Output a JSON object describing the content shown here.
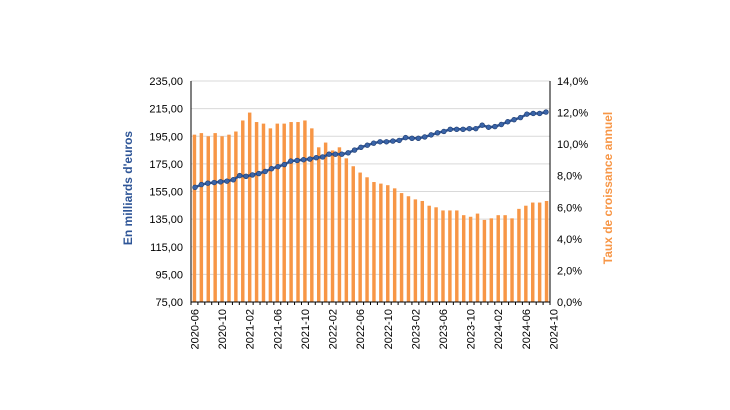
{
  "chart_data": {
    "type": "bar+line",
    "title": "",
    "grid": true,
    "left_axis": {
      "label": "En milliards d'euros",
      "color": "#2E5597",
      "ylim": [
        75,
        235
      ],
      "ticks": [
        "235,00",
        "215,00",
        "195,00",
        "175,00",
        "155,00",
        "135,00",
        "115,00",
        "95,00",
        "75,00"
      ]
    },
    "right_axis": {
      "label": "Taux de croissance annuel",
      "color": "#F79646",
      "ylim": [
        0,
        14
      ],
      "ticks": [
        "14,0%",
        "12,0%",
        "10,0%",
        "8,0%",
        "6,0%",
        "4,0%",
        "2,0%",
        "0,0%"
      ]
    },
    "x_tick_labels": [
      "2020-06",
      "2020-10",
      "2021-02",
      "2021-06",
      "2021-10",
      "2022-02",
      "2022-06",
      "2022-10",
      "2023-02",
      "2023-06",
      "2023-10",
      "2024-02",
      "2024-06",
      "2024-10"
    ],
    "bar_series": {
      "axis": "right",
      "color": "#F79646",
      "values": [
        10.6,
        10.7,
        10.5,
        10.7,
        10.5,
        10.6,
        10.8,
        11.5,
        12.0,
        11.4,
        11.3,
        11.0,
        11.3,
        11.3,
        11.4,
        11.4,
        11.5,
        11.0,
        9.8,
        10.1,
        9.6,
        9.8,
        9.1,
        8.6,
        8.2,
        7.9,
        7.6,
        7.5,
        7.4,
        7.2,
        6.9,
        6.7,
        6.5,
        6.4,
        6.1,
        6.0,
        5.8,
        5.8,
        5.8,
        5.5,
        5.4,
        5.6,
        5.2,
        5.3,
        5.5,
        5.5,
        5.3,
        5.9,
        6.1,
        6.3,
        6.3,
        6.4
      ]
    },
    "line_series": {
      "axis": "left",
      "color": "#2E5597",
      "values": [
        158,
        160,
        161,
        161.5,
        162,
        162.5,
        163.5,
        166.5,
        166,
        167,
        168,
        169.5,
        171.5,
        173,
        174.5,
        177,
        177.5,
        178,
        178.5,
        179.5,
        180,
        182,
        182,
        182,
        183,
        185,
        187,
        188.5,
        190,
        191,
        191,
        191.5,
        192,
        194,
        193.5,
        193.5,
        194.5,
        196,
        197.5,
        198.5,
        200,
        200,
        200,
        200.5,
        200.5,
        203,
        201.5,
        202,
        203.5,
        205.5,
        207,
        208.5,
        211,
        211.5,
        211.5,
        212.5
      ]
    }
  }
}
